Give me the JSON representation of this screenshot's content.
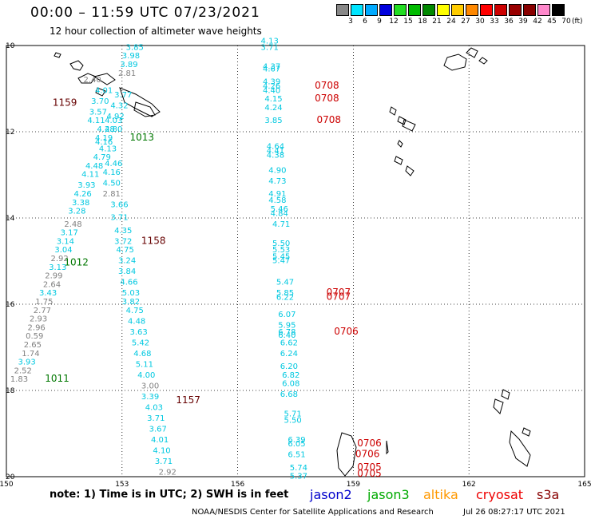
{
  "title": "00:00 – 11:59 UTC 07/23/2021",
  "subtitle": "12 hour collection of altimeter wave heights",
  "colorbar": {
    "labels": [
      "3",
      "6",
      "9",
      "12",
      "15",
      "18",
      "21",
      "24",
      "27",
      "30",
      "33",
      "36",
      "39",
      "42",
      "45",
      "70"
    ],
    "unit": "(ft)",
    "colors": [
      "#888888",
      "#00e5ff",
      "#00aaff",
      "#0000dd",
      "#22dd22",
      "#00bb00",
      "#008800",
      "#ffff00",
      "#ffcc00",
      "#ff8800",
      "#ff0000",
      "#cc0000",
      "#990000",
      "#880000",
      "#ff88cc",
      "#000000"
    ]
  },
  "axes": {
    "lon_labels": [
      "150",
      "153",
      "156",
      "159",
      "162",
      "165"
    ],
    "lat_labels": [
      "10",
      "12",
      "14",
      "16",
      "18",
      "20"
    ]
  },
  "swh_colors": {
    "gray": "#808080",
    "cyan": "#00c8e0",
    "darkred": "#660000",
    "red": "#cc0000",
    "green": "#007700"
  },
  "passes": [
    {
      "time": "1159",
      "color": "#660000",
      "lon": 151.2,
      "lat": 11.4
    },
    {
      "time": "1013",
      "color": "#007700",
      "lon": 153.2,
      "lat": 12.2
    },
    {
      "time": "1158",
      "color": "#660000",
      "lon": 153.5,
      "lat": 14.6
    },
    {
      "time": "1012",
      "color": "#007700",
      "lon": 151.5,
      "lat": 15.1
    },
    {
      "time": "1011",
      "color": "#007700",
      "lon": 151.0,
      "lat": 17.8
    },
    {
      "time": "1157",
      "color": "#660000",
      "lon": 154.4,
      "lat": 18.3
    },
    {
      "time": "0708",
      "color": "#cc0000",
      "lon": 158.0,
      "lat": 11.0
    },
    {
      "time": "0708",
      "color": "#cc0000",
      "lon": 158.0,
      "lat": 11.3
    },
    {
      "time": "0708",
      "color": "#cc0000",
      "lon": 158.05,
      "lat": 11.8
    },
    {
      "time": "0707",
      "color": "#cc0000",
      "lon": 158.3,
      "lat": 15.8
    },
    {
      "time": "0707",
      "color": "#cc0000",
      "lon": 158.3,
      "lat": 15.9
    },
    {
      "time": "0706",
      "color": "#cc0000",
      "lon": 158.5,
      "lat": 16.7
    },
    {
      "time": "0706",
      "color": "#cc0000",
      "lon": 159.1,
      "lat": 19.3
    },
    {
      "time": "0706",
      "color": "#cc0000",
      "lon": 159.05,
      "lat": 19.55
    },
    {
      "time": "0705",
      "color": "#cc0000",
      "lon": 159.1,
      "lat": 19.85
    },
    {
      "time": "0705",
      "color": "#cc0000",
      "lon": 159.1,
      "lat": 20.0
    }
  ],
  "swh": [
    {
      "v": "3.85",
      "c": "cyan",
      "lon": 153.1,
      "lat": 10.1
    },
    {
      "v": "3.98",
      "c": "cyan",
      "lon": 153.0,
      "lat": 10.3
    },
    {
      "v": "3.89",
      "c": "cyan",
      "lon": 152.95,
      "lat": 10.5
    },
    {
      "v": "2.81",
      "c": "gray",
      "lon": 152.9,
      "lat": 10.7
    },
    {
      "v": "2.40",
      "c": "gray",
      "lon": 152.0,
      "lat": 10.85
    },
    {
      "v": "4.01",
      "c": "cyan",
      "lon": 152.3,
      "lat": 11.1
    },
    {
      "v": "3.77",
      "c": "cyan",
      "lon": 152.8,
      "lat": 11.2
    },
    {
      "v": "3.70",
      "c": "cyan",
      "lon": 152.2,
      "lat": 11.35
    },
    {
      "v": "4.32",
      "c": "cyan",
      "lon": 152.7,
      "lat": 11.45
    },
    {
      "v": "3.57",
      "c": "cyan",
      "lon": 152.15,
      "lat": 11.6
    },
    {
      "v": "4.92",
      "c": "cyan",
      "lon": 152.6,
      "lat": 11.7
    },
    {
      "v": "4.11",
      "c": "cyan",
      "lon": 152.1,
      "lat": 11.8
    },
    {
      "v": "4.03",
      "c": "cyan",
      "lon": 152.55,
      "lat": 11.8
    },
    {
      "v": "4.28",
      "c": "cyan",
      "lon": 152.35,
      "lat": 12.0
    },
    {
      "v": "4.80",
      "c": "cyan",
      "lon": 152.55,
      "lat": 12.0
    },
    {
      "v": "4.19",
      "c": "cyan",
      "lon": 152.3,
      "lat": 12.2
    },
    {
      "v": "4.16",
      "c": "cyan",
      "lon": 152.3,
      "lat": 12.3
    },
    {
      "v": "4.13",
      "c": "cyan",
      "lon": 152.4,
      "lat": 12.45
    },
    {
      "v": "4.79",
      "c": "cyan",
      "lon": 152.25,
      "lat": 12.65
    },
    {
      "v": "4.46",
      "c": "cyan",
      "lon": 152.55,
      "lat": 12.8
    },
    {
      "v": "4.48",
      "c": "cyan",
      "lon": 152.05,
      "lat": 12.85
    },
    {
      "v": "4.16",
      "c": "cyan",
      "lon": 152.5,
      "lat": 13.0
    },
    {
      "v": "4.11",
      "c": "cyan",
      "lon": 151.95,
      "lat": 13.05
    },
    {
      "v": "4.50",
      "c": "cyan",
      "lon": 152.5,
      "lat": 13.25
    },
    {
      "v": "3.93",
      "c": "cyan",
      "lon": 151.85,
      "lat": 13.3
    },
    {
      "v": "2.81",
      "c": "gray",
      "lon": 152.5,
      "lat": 13.5
    },
    {
      "v": "4.26",
      "c": "cyan",
      "lon": 151.75,
      "lat": 13.5
    },
    {
      "v": "3.66",
      "c": "cyan",
      "lon": 152.7,
      "lat": 13.75
    },
    {
      "v": "3.38",
      "c": "cyan",
      "lon": 151.7,
      "lat": 13.7
    },
    {
      "v": "3.28",
      "c": "cyan",
      "lon": 151.6,
      "lat": 13.9
    },
    {
      "v": "3.71",
      "c": "cyan",
      "lon": 152.7,
      "lat": 14.05
    },
    {
      "v": "2.48",
      "c": "gray",
      "lon": 151.5,
      "lat": 14.2
    },
    {
      "v": "4.35",
      "c": "cyan",
      "lon": 152.8,
      "lat": 14.35
    },
    {
      "v": "3.17",
      "c": "cyan",
      "lon": 151.4,
      "lat": 14.4
    },
    {
      "v": "3.72",
      "c": "cyan",
      "lon": 152.8,
      "lat": 14.6
    },
    {
      "v": "3.14",
      "c": "cyan",
      "lon": 151.3,
      "lat": 14.6
    },
    {
      "v": "4.75",
      "c": "cyan",
      "lon": 152.85,
      "lat": 14.8
    },
    {
      "v": "3.04",
      "c": "cyan",
      "lon": 151.25,
      "lat": 14.8
    },
    {
      "v": "2.92",
      "c": "gray",
      "lon": 151.15,
      "lat": 15.0
    },
    {
      "v": "3.24",
      "c": "cyan",
      "lon": 152.9,
      "lat": 15.05
    },
    {
      "v": "3.13",
      "c": "cyan",
      "lon": 151.1,
      "lat": 15.2
    },
    {
      "v": "3.84",
      "c": "cyan",
      "lon": 152.9,
      "lat": 15.3
    },
    {
      "v": "2.99",
      "c": "gray",
      "lon": 151.0,
      "lat": 15.4
    },
    {
      "v": "4.66",
      "c": "cyan",
      "lon": 152.95,
      "lat": 15.55
    },
    {
      "v": "2.64",
      "c": "gray",
      "lon": 150.95,
      "lat": 15.6
    },
    {
      "v": "5.03",
      "c": "cyan",
      "lon": 153.0,
      "lat": 15.8
    },
    {
      "v": "3.43",
      "c": "cyan",
      "lon": 150.85,
      "lat": 15.8
    },
    {
      "v": "3.82",
      "c": "cyan",
      "lon": 153.0,
      "lat": 16.0
    },
    {
      "v": "1.75",
      "c": "gray",
      "lon": 150.75,
      "lat": 16.0
    },
    {
      "v": "2.77",
      "c": "gray",
      "lon": 150.7,
      "lat": 16.2
    },
    {
      "v": "4.75",
      "c": "cyan",
      "lon": 153.1,
      "lat": 16.2
    },
    {
      "v": "2.93",
      "c": "gray",
      "lon": 150.6,
      "lat": 16.4
    },
    {
      "v": "4.48",
      "c": "cyan",
      "lon": 153.15,
      "lat": 16.45
    },
    {
      "v": "2.96",
      "c": "gray",
      "lon": 150.55,
      "lat": 16.6
    },
    {
      "v": "3.63",
      "c": "cyan",
      "lon": 153.2,
      "lat": 16.7
    },
    {
      "v": "0.59",
      "c": "gray",
      "lon": 150.5,
      "lat": 16.8
    },
    {
      "v": "5.42",
      "c": "cyan",
      "lon": 153.25,
      "lat": 16.95
    },
    {
      "v": "2.65",
      "c": "gray",
      "lon": 150.45,
      "lat": 17.0
    },
    {
      "v": "4.68",
      "c": "cyan",
      "lon": 153.3,
      "lat": 17.2
    },
    {
      "v": "1.74",
      "c": "gray",
      "lon": 150.4,
      "lat": 17.2
    },
    {
      "v": "3.93",
      "c": "cyan",
      "lon": 150.3,
      "lat": 17.4
    },
    {
      "v": "5.11",
      "c": "cyan",
      "lon": 153.35,
      "lat": 17.45
    },
    {
      "v": "2.52",
      "c": "gray",
      "lon": 150.2,
      "lat": 17.6
    },
    {
      "v": "4.00",
      "c": "cyan",
      "lon": 153.4,
      "lat": 17.7
    },
    {
      "v": "1.83",
      "c": "gray",
      "lon": 150.1,
      "lat": 17.8
    },
    {
      "v": "3.00",
      "c": "gray",
      "lon": 153.5,
      "lat": 17.95
    },
    {
      "v": "3.39",
      "c": "cyan",
      "lon": 153.5,
      "lat": 18.2
    },
    {
      "v": "4.03",
      "c": "cyan",
      "lon": 153.6,
      "lat": 18.45
    },
    {
      "v": "3.71",
      "c": "cyan",
      "lon": 153.65,
      "lat": 18.7
    },
    {
      "v": "3.67",
      "c": "cyan",
      "lon": 153.7,
      "lat": 18.95
    },
    {
      "v": "4.01",
      "c": "cyan",
      "lon": 153.75,
      "lat": 19.2
    },
    {
      "v": "4.10",
      "c": "cyan",
      "lon": 153.8,
      "lat": 19.45
    },
    {
      "v": "3.71",
      "c": "cyan",
      "lon": 153.85,
      "lat": 19.7
    },
    {
      "v": "2.92",
      "c": "gray",
      "lon": 153.95,
      "lat": 19.95
    },
    {
      "v": "4.13",
      "c": "cyan",
      "lon": 156.6,
      "lat": 9.95
    },
    {
      "v": "3.71",
      "c": "cyan",
      "lon": 156.6,
      "lat": 10.1
    },
    {
      "v": "4.37",
      "c": "cyan",
      "lon": 156.65,
      "lat": 10.55
    },
    {
      "v": "4.67",
      "c": "cyan",
      "lon": 156.65,
      "lat": 10.6
    },
    {
      "v": "4.39",
      "c": "cyan",
      "lon": 156.65,
      "lat": 10.9
    },
    {
      "v": "4.26",
      "c": "cyan",
      "lon": 156.65,
      "lat": 11.0
    },
    {
      "v": "4.40",
      "c": "cyan",
      "lon": 156.65,
      "lat": 11.1
    },
    {
      "v": "4.15",
      "c": "cyan",
      "lon": 156.7,
      "lat": 11.3
    },
    {
      "v": "4.24",
      "c": "cyan",
      "lon": 156.7,
      "lat": 11.5
    },
    {
      "v": "3.85",
      "c": "cyan",
      "lon": 156.7,
      "lat": 11.8
    },
    {
      "v": "4.64",
      "c": "cyan",
      "lon": 156.75,
      "lat": 12.4
    },
    {
      "v": "4.41",
      "c": "cyan",
      "lon": 156.75,
      "lat": 12.5
    },
    {
      "v": "4.38",
      "c": "cyan",
      "lon": 156.75,
      "lat": 12.6
    },
    {
      "v": "4.90",
      "c": "cyan",
      "lon": 156.8,
      "lat": 12.95
    },
    {
      "v": "4.73",
      "c": "cyan",
      "lon": 156.8,
      "lat": 13.2
    },
    {
      "v": "4.91",
      "c": "cyan",
      "lon": 156.8,
      "lat": 13.5
    },
    {
      "v": "4.58",
      "c": "cyan",
      "lon": 156.8,
      "lat": 13.65
    },
    {
      "v": "5.46",
      "c": "cyan",
      "lon": 156.85,
      "lat": 13.85
    },
    {
      "v": "4.84",
      "c": "cyan",
      "lon": 156.85,
      "lat": 13.95
    },
    {
      "v": "4.71",
      "c": "cyan",
      "lon": 156.9,
      "lat": 14.2
    },
    {
      "v": "5.50",
      "c": "cyan",
      "lon": 156.9,
      "lat": 14.65
    },
    {
      "v": "5.53",
      "c": "cyan",
      "lon": 156.9,
      "lat": 14.8
    },
    {
      "v": "5.45",
      "c": "cyan",
      "lon": 156.9,
      "lat": 14.95
    },
    {
      "v": "5.47",
      "c": "cyan",
      "lon": 156.9,
      "lat": 15.05
    },
    {
      "v": "5.47",
      "c": "cyan",
      "lon": 157.0,
      "lat": 15.55
    },
    {
      "v": "5.85",
      "c": "cyan",
      "lon": 157.0,
      "lat": 15.8
    },
    {
      "v": "6.22",
      "c": "cyan",
      "lon": 157.0,
      "lat": 15.9
    },
    {
      "v": "6.07",
      "c": "cyan",
      "lon": 157.05,
      "lat": 16.3
    },
    {
      "v": "5.95",
      "c": "cyan",
      "lon": 157.05,
      "lat": 16.55
    },
    {
      "v": "6.78",
      "c": "cyan",
      "lon": 157.05,
      "lat": 16.7
    },
    {
      "v": "6.40",
      "c": "cyan",
      "lon": 157.05,
      "lat": 16.78
    },
    {
      "v": "6.62",
      "c": "cyan",
      "lon": 157.1,
      "lat": 16.95
    },
    {
      "v": "6.24",
      "c": "cyan",
      "lon": 157.1,
      "lat": 17.2
    },
    {
      "v": "6.20",
      "c": "cyan",
      "lon": 157.1,
      "lat": 17.5
    },
    {
      "v": "6.82",
      "c": "cyan",
      "lon": 157.15,
      "lat": 17.7
    },
    {
      "v": "6.08",
      "c": "cyan",
      "lon": 157.15,
      "lat": 17.9
    },
    {
      "v": "6.68",
      "c": "cyan",
      "lon": 157.1,
      "lat": 18.15
    },
    {
      "v": "5.71",
      "c": "cyan",
      "lon": 157.2,
      "lat": 18.6
    },
    {
      "v": "5.50",
      "c": "cyan",
      "lon": 157.2,
      "lat": 18.75
    },
    {
      "v": "6.39",
      "c": "cyan",
      "lon": 157.3,
      "lat": 19.2
    },
    {
      "v": "6.05",
      "c": "cyan",
      "lon": 157.3,
      "lat": 19.3
    },
    {
      "v": "6.51",
      "c": "cyan",
      "lon": 157.3,
      "lat": 19.55
    },
    {
      "v": "5.74",
      "c": "cyan",
      "lon": 157.35,
      "lat": 19.85
    },
    {
      "v": "5.37",
      "c": "cyan",
      "lon": 157.35,
      "lat": 20.05
    }
  ],
  "note": "note:  1) Time is in UTC;  2) SWH is in feet",
  "satellites": [
    {
      "name": "jason2",
      "color": "#0000cc"
    },
    {
      "name": "jason3",
      "color": "#00aa00"
    },
    {
      "name": "altika",
      "color": "#ff9900"
    },
    {
      "name": "cryosat",
      "color": "#ee0000"
    },
    {
      "name": "s3a",
      "color": "#880000"
    }
  ],
  "footer": "NOAA/NESDIS Center for Satellite Applications and Research",
  "credit": "Jul 26 08:27:17 UTC 2021"
}
